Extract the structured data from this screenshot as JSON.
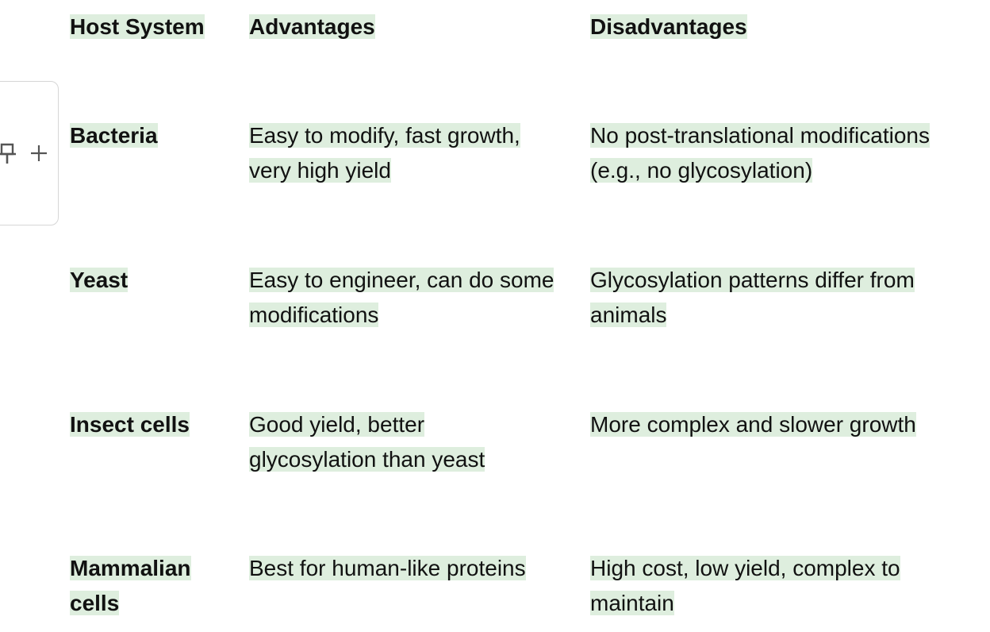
{
  "table": {
    "headers": [
      "Host System",
      "Advantages",
      "Disadvantages"
    ],
    "rows": [
      {
        "host": "Bacteria",
        "advantages": "Easy to modify, fast growth, very high yield",
        "disadvantages": "No post-translational modifications (e.g., no glycosylation)"
      },
      {
        "host": "Yeast",
        "advantages": "Easy to engineer, can do some modifications",
        "disadvantages": "Glycosylation patterns differ from animals"
      },
      {
        "host": "Insect cells",
        "advantages": "Good yield, better glycosylation than yeast",
        "disadvantages": "More complex and slower growth"
      },
      {
        "host": "Mammalian cells",
        "advantages": "Best for human-like proteins",
        "disadvantages": "High cost, low yield, complex to maintain"
      }
    ]
  },
  "toolbar": {
    "icons": [
      "pin-icon",
      "plus-icon"
    ]
  },
  "colors": {
    "highlight": "#deeede",
    "text": "#111111",
    "toolbar_border": "#d6d6d6"
  }
}
